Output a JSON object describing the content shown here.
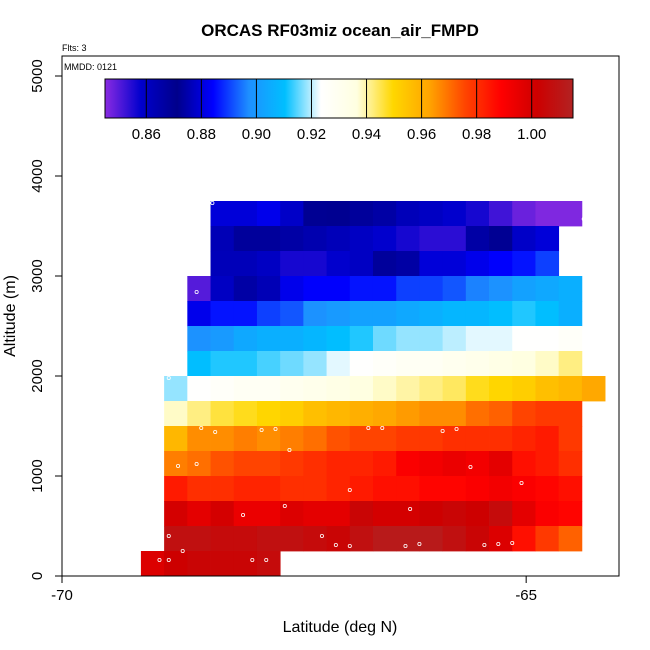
{
  "chart_data": {
    "type": "heatmap",
    "title": "ORCAS RF03miz ocean_air_FMPD",
    "flights_note": "Flts: 3",
    "date_note": "MMDD: 0121",
    "xlabel": "Latitude (deg N)",
    "ylabel": "Altitude (m)",
    "xlim": [
      -70,
      -64
    ],
    "ylim": [
      0,
      5200
    ],
    "x_ticks": [
      -70,
      -65
    ],
    "x_tick_labels": [
      "-70",
      "-65"
    ],
    "y_ticks": [
      0,
      1000,
      2000,
      3000,
      4000,
      5000
    ],
    "y_tick_labels": [
      "0",
      "1000",
      "2000",
      "3000",
      "4000",
      "5000"
    ],
    "colorbar": {
      "range": [
        0.845,
        1.015
      ],
      "ticks": [
        0.86,
        0.88,
        0.9,
        0.92,
        0.94,
        0.96,
        0.98,
        1.0
      ],
      "tick_labels": [
        "0.86",
        "0.88",
        "0.90",
        "0.92",
        "0.94",
        "0.96",
        "0.98",
        "1.00"
      ],
      "colors": [
        "#8a2be2",
        "#0000cd",
        "#00008b",
        "#0000ff",
        "#1e90ff",
        "#00bfff",
        "#ffffff",
        "#ffffe0",
        "#ffd700",
        "#ffa500",
        "#ff4500",
        "#ff0000",
        "#cd0000",
        "#b22222"
      ]
    },
    "cell_size": {
      "lat": 0.25,
      "alt": 250
    },
    "rows": [
      {
        "alt": 3500,
        "lat_start": -68.4,
        "values": [
          0.88,
          0.88,
          0.882,
          0.878,
          0.872,
          0.87,
          0.868,
          0.866,
          0.862,
          0.86,
          0.858,
          0.856,
          0.852,
          0.848,
          0.846,
          0.846
        ]
      },
      {
        "alt": 3250,
        "lat_start": -68.4,
        "values": [
          0.876,
          0.868,
          0.868,
          0.866,
          0.864,
          0.862,
          0.86,
          0.858,
          0.856,
          0.854,
          0.854,
          0.866,
          0.872,
          0.878,
          0.88
        ]
      },
      {
        "alt": 3000,
        "lat_start": -68.4,
        "values": [
          0.862,
          0.862,
          0.86,
          0.856,
          0.856,
          0.858,
          0.86,
          0.868,
          0.874,
          0.88,
          0.88,
          0.882,
          0.884,
          0.886,
          0.89
        ]
      },
      {
        "alt": 2750,
        "lat_start": -68.65,
        "values": [
          0.85,
          0.86,
          0.866,
          0.876,
          0.882,
          0.884,
          0.884,
          0.886,
          0.886,
          0.89,
          0.89,
          0.892,
          0.896,
          0.898,
          0.902,
          0.904,
          0.906
        ]
      },
      {
        "alt": 2500,
        "lat_start": -68.65,
        "values": [
          0.882,
          0.886,
          0.886,
          0.89,
          0.892,
          0.898,
          0.9,
          0.902,
          0.902,
          0.904,
          0.906,
          0.908,
          0.908,
          0.91,
          0.912,
          0.91,
          0.906
        ]
      },
      {
        "alt": 2250,
        "lat_start": -68.65,
        "values": [
          0.898,
          0.9,
          0.904,
          0.906,
          0.906,
          0.908,
          0.91,
          0.912,
          0.916,
          0.918,
          0.918,
          0.92,
          0.922,
          0.922,
          0.924,
          0.924,
          0.926
        ]
      },
      {
        "alt": 2000,
        "lat_start": -68.65,
        "values": [
          0.91,
          0.912,
          0.912,
          0.914,
          0.916,
          0.918,
          0.922,
          0.924,
          0.926,
          0.928,
          0.928,
          0.93,
          0.932,
          0.934,
          0.936,
          0.938,
          0.942
        ]
      },
      {
        "alt": 1750,
        "lat_start": -68.9,
        "values": [
          0.918,
          0.924,
          0.926,
          0.928,
          0.928,
          0.93,
          0.932,
          0.934,
          0.936,
          0.938,
          0.94,
          0.942,
          0.944,
          0.948,
          0.95,
          0.952,
          0.956,
          0.958,
          0.962
        ]
      },
      {
        "alt": 1500,
        "lat_start": -68.9,
        "values": [
          0.938,
          0.942,
          0.946,
          0.948,
          0.95,
          0.952,
          0.956,
          0.958,
          0.96,
          0.962,
          0.964,
          0.966,
          0.966,
          0.97,
          0.972,
          0.976,
          0.978,
          0.978
        ]
      },
      {
        "alt": 1250,
        "lat_start": -68.9,
        "values": [
          0.958,
          0.966,
          0.966,
          0.968,
          0.966,
          0.968,
          0.97,
          0.974,
          0.976,
          0.976,
          0.978,
          0.978,
          0.98,
          0.98,
          0.98,
          0.982,
          0.984,
          0.978
        ]
      },
      {
        "alt": 1000,
        "lat_start": -68.9,
        "values": [
          0.968,
          0.97,
          0.974,
          0.976,
          0.976,
          0.978,
          0.98,
          0.982,
          0.982,
          0.984,
          0.99,
          0.992,
          0.994,
          0.992,
          0.996,
          0.986,
          0.984,
          0.98
        ]
      },
      {
        "alt": 750,
        "lat_start": -68.9,
        "values": [
          0.984,
          0.98,
          0.98,
          0.982,
          0.982,
          0.98,
          0.98,
          0.982,
          0.984,
          0.986,
          0.986,
          0.988,
          0.988,
          0.99,
          0.992,
          0.99,
          0.988,
          0.986
        ]
      },
      {
        "alt": 500,
        "lat_start": -68.9,
        "values": [
          1.0,
          0.996,
          1.0,
          0.994,
          0.994,
          0.998,
          0.996,
          0.996,
          1.004,
          1.0,
          1.0,
          1.002,
          1.004,
          1.002,
          1.006,
          0.996,
          0.99,
          0.988
        ]
      },
      {
        "alt": 250,
        "lat_start": -68.9,
        "values": [
          1.008,
          1.008,
          1.006,
          1.006,
          1.008,
          1.008,
          1.006,
          1.004,
          1.008,
          1.012,
          1.012,
          1.012,
          1.008,
          1.004,
          0.998,
          0.986,
          0.978,
          0.972
        ]
      },
      {
        "alt": 0,
        "lat_start": -69.15,
        "values": [
          0.998,
          1.002,
          1.004,
          1.004,
          1.004,
          1.006
        ]
      }
    ],
    "points": [
      [
        -68.38,
        3730
      ],
      [
        -64.38,
        3570
      ],
      [
        -68.55,
        2840
      ],
      [
        -64.2,
        2690
      ],
      [
        -68.85,
        1980
      ],
      [
        -68.5,
        1480
      ],
      [
        -68.35,
        1440
      ],
      [
        -67.85,
        1460
      ],
      [
        -67.7,
        1470
      ],
      [
        -67.55,
        1260
      ],
      [
        -66.7,
        1480
      ],
      [
        -66.55,
        1480
      ],
      [
        -65.9,
        1450
      ],
      [
        -65.75,
        1470
      ],
      [
        -68.75,
        1100
      ],
      [
        -68.55,
        1120
      ],
      [
        -65.6,
        1090
      ],
      [
        -66.9,
        860
      ],
      [
        -65.05,
        930
      ],
      [
        -67.6,
        700
      ],
      [
        -68.05,
        610
      ],
      [
        -66.25,
        670
      ],
      [
        -68.85,
        400
      ],
      [
        -68.7,
        250
      ],
      [
        -67.2,
        400
      ],
      [
        -67.05,
        310
      ],
      [
        -66.9,
        300
      ],
      [
        -66.3,
        300
      ],
      [
        -66.15,
        320
      ],
      [
        -65.45,
        310
      ],
      [
        -65.3,
        320
      ],
      [
        -65.15,
        330
      ],
      [
        -68.95,
        160
      ],
      [
        -68.85,
        160
      ],
      [
        -67.95,
        160
      ],
      [
        -67.8,
        160
      ]
    ]
  }
}
